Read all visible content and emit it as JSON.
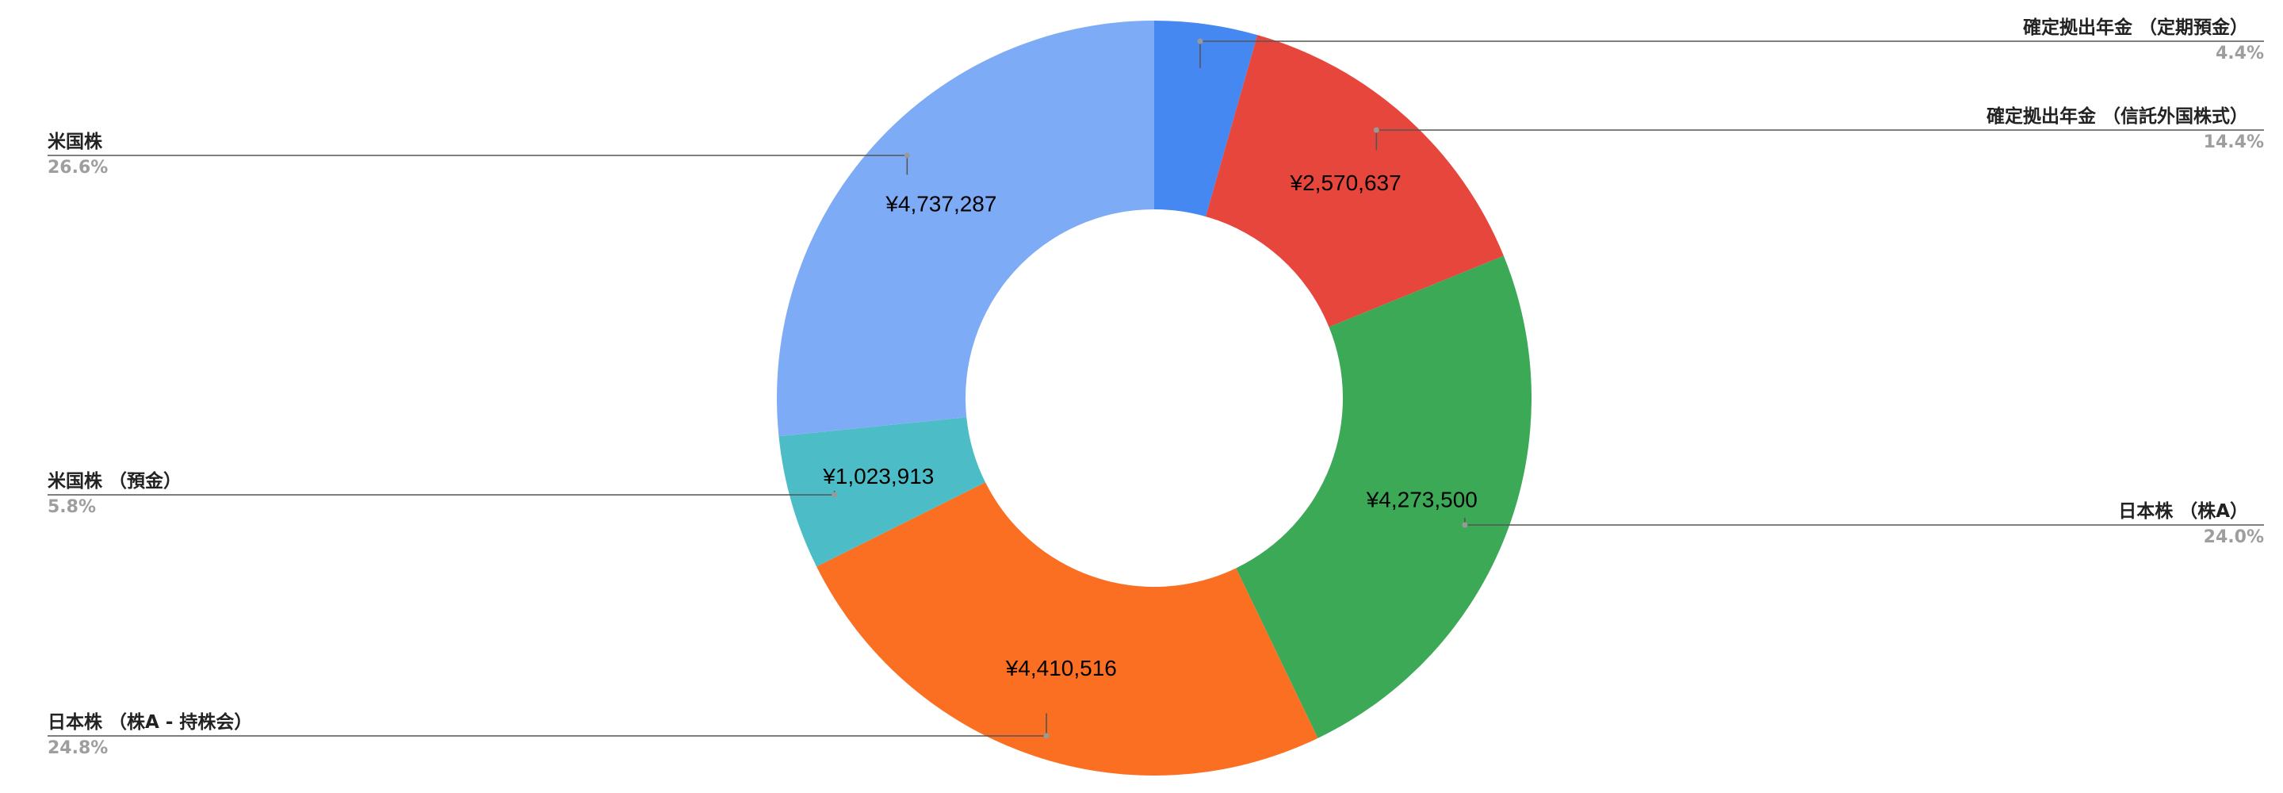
{
  "chart_data": {
    "type": "pie",
    "donut": true,
    "title": "",
    "legend_position": "callouts",
    "currency": "¥",
    "slices": [
      {
        "name": "確定拠出年金 （定期預金）",
        "value": 785000,
        "value_label": "",
        "percent": "4.4%",
        "color": "#4688F1"
      },
      {
        "name": "確定拠出年金 （信託外国株式）",
        "value": 2570637,
        "value_label": "¥2,570,637",
        "percent": "14.4%",
        "color": "#E7463C"
      },
      {
        "name": "日本株 （株A）",
        "value": 4273500,
        "value_label": "¥4,273,500",
        "percent": "24.0%",
        "color": "#3CA957"
      },
      {
        "name": "日本株 （株A - 持株会）",
        "value": 4410516,
        "value_label": "¥4,410,516",
        "percent": "24.8%",
        "color": "#FB6F22"
      },
      {
        "name": "米国株 （預金）",
        "value": 1023913,
        "value_label": "¥1,023,913",
        "percent": "5.8%",
        "color": "#4CBDC6"
      },
      {
        "name": "米国株",
        "value": 4737287,
        "value_label": "¥4,737,287",
        "percent": "26.6%",
        "color": "#7EABF5"
      }
    ]
  }
}
